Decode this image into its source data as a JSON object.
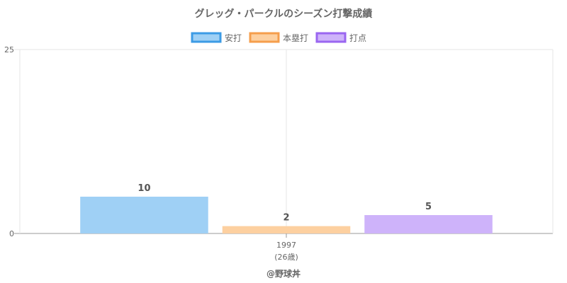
{
  "chart_data": {
    "type": "bar",
    "title": "グレッグ・パークルのシーズン打撃成績",
    "categories": [
      "1997"
    ],
    "category_sublabels": [
      "(26歳)"
    ],
    "series": [
      {
        "name": "安打",
        "values": [
          10
        ],
        "display_value": [
          5
        ],
        "fill": "#9fd0f5",
        "stroke": "#3c9be5"
      },
      {
        "name": "本塁打",
        "values": [
          2
        ],
        "display_value": [
          1
        ],
        "fill": "#fdd0a0",
        "stroke": "#f59e4c"
      },
      {
        "name": "打点",
        "values": [
          5
        ],
        "display_value": [
          2.5
        ],
        "fill": "#ceb3fa",
        "stroke": "#9a66f0"
      }
    ],
    "ylim": [
      0,
      25
    ],
    "yticks": [
      "0",
      "25"
    ],
    "grid": true,
    "legend_position": "top",
    "credit": "@野球丼"
  }
}
